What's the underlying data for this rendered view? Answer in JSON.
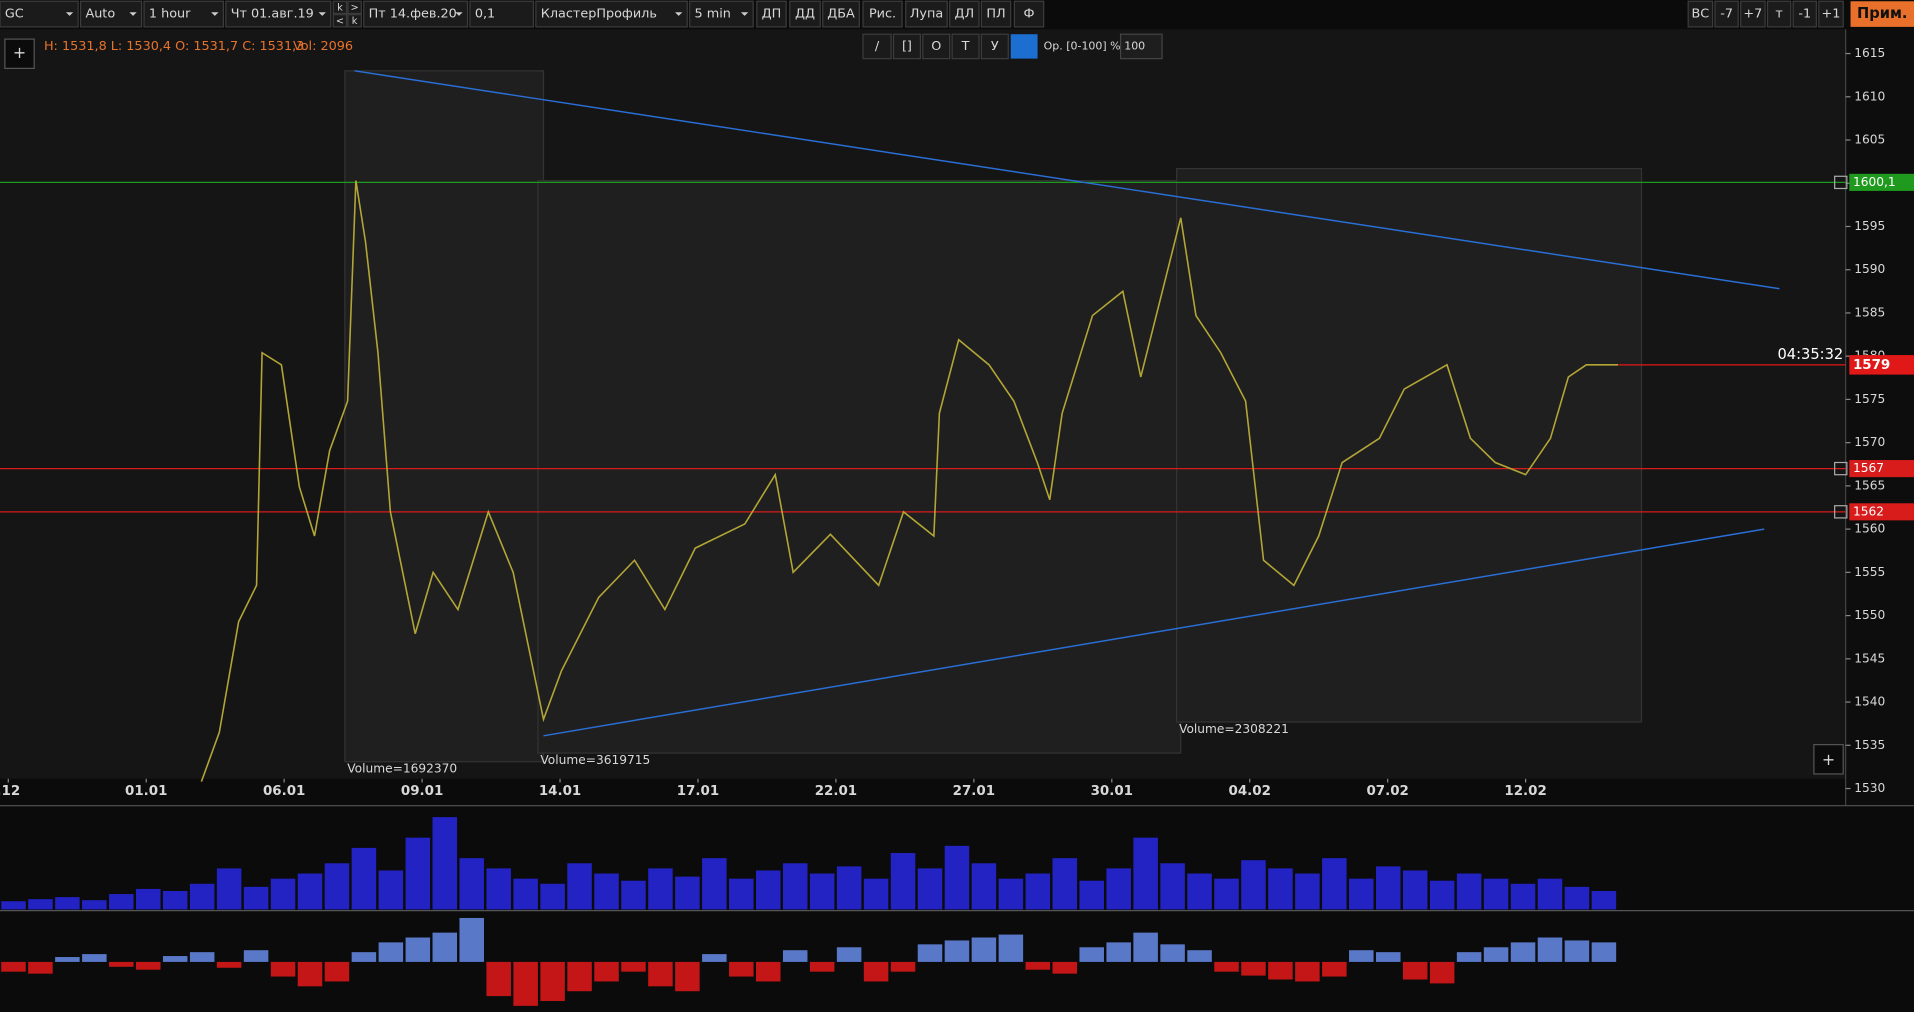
{
  "toolbar": {
    "symbol": "GC",
    "scale": "Auto",
    "timeframe": "1 hour",
    "date_from": "Чт 01.авг.19",
    "nav": [
      "k",
      ">",
      "<",
      "k"
    ],
    "date_to": "Пт 14.фев.20",
    "step": "0,1",
    "chart_type": "КластерПрофиль",
    "profile_period": "5 min",
    "buttons": [
      "ДП",
      "ДД",
      "ДБА",
      "Рис.",
      "Лупа",
      "ДЛ",
      "ПЛ",
      "Ф"
    ],
    "right_buttons": [
      "ВС",
      "-7",
      "+7",
      "т",
      "-1",
      "+1"
    ],
    "apply": "Прим."
  },
  "drawing_tools": {
    "buttons": [
      "/",
      "[]",
      "O",
      "T",
      "У"
    ],
    "opacity_label": "Ор. [0-100] %:",
    "opacity_value": "100"
  },
  "info": {
    "ohlc": "H: 1531,8 L: 1530,4 O: 1531,7 C: 1531,3",
    "volume": "Vol: 2096"
  },
  "chart": {
    "type": "line",
    "color": "#b3a636",
    "xlim": [
      -0.06,
      13.32
    ],
    "ylim": [
      1528.3,
      1617.8
    ],
    "yticks": [
      1530,
      1535,
      1540,
      1545,
      1550,
      1555,
      1560,
      1565,
      1570,
      1575,
      1580,
      1585,
      1590,
      1595,
      1600,
      1605,
      1610,
      1615
    ],
    "xticks": [
      {
        "value": 0,
        "label": ".12"
      },
      {
        "value": 1,
        "label": "01.01"
      },
      {
        "value": 2,
        "label": "06.01"
      },
      {
        "value": 3,
        "label": "09.01"
      },
      {
        "value": 4,
        "label": "14.01"
      },
      {
        "value": 5,
        "label": "17.01"
      },
      {
        "value": 6,
        "label": "22.01"
      },
      {
        "value": 7,
        "label": "27.01"
      },
      {
        "value": 8,
        "label": "30.01"
      },
      {
        "value": 9,
        "label": "04.02"
      },
      {
        "value": 10,
        "label": "07.02"
      },
      {
        "value": 11,
        "label": "12.02"
      }
    ],
    "price": {
      "x": [
        1.4,
        1.53,
        1.67,
        1.8,
        1.84,
        1.98,
        2.11,
        2.22,
        2.33,
        2.46,
        2.52,
        2.59,
        2.68,
        2.77,
        2.95,
        3.08,
        3.26,
        3.48,
        3.66,
        3.88,
        4.01,
        4.28,
        4.54,
        4.76,
        4.98,
        5.34,
        5.56,
        5.69,
        5.96,
        6.31,
        6.49,
        6.71,
        6.75,
        6.89,
        7.11,
        7.29,
        7.46,
        7.55,
        7.64,
        7.86,
        8.08,
        8.21,
        8.39,
        8.5,
        8.61,
        8.79,
        8.97,
        9.1,
        9.32,
        9.5,
        9.67,
        9.94,
        10.12,
        10.43,
        10.6,
        10.78,
        11.0,
        11.18,
        11.31,
        11.44,
        11.67
      ],
      "y": [
        1530.8,
        1536.5,
        1549.3,
        1553.5,
        1580.4,
        1579,
        1564.9,
        1559.2,
        1569.1,
        1574.8,
        1600.3,
        1593.2,
        1580.4,
        1562,
        1547.9,
        1555,
        1550.7,
        1562,
        1555,
        1538,
        1543.6,
        1552.1,
        1556.4,
        1550.7,
        1557.8,
        1560.6,
        1566.3,
        1555,
        1559.4,
        1553.5,
        1562,
        1559.2,
        1573.4,
        1581.9,
        1579,
        1574.8,
        1567.7,
        1563.4,
        1573.4,
        1584.7,
        1587.5,
        1577.6,
        1589,
        1596,
        1584.7,
        1580.4,
        1574.8,
        1556.4,
        1553.5,
        1559.2,
        1567.7,
        1570.5,
        1576.2,
        1579,
        1570.5,
        1567.7,
        1566.3,
        1570.5,
        1577.6,
        1579,
        1579
      ]
    },
    "levels": [
      {
        "value": 1600.1,
        "label": "1600,1",
        "color": "#1f9a1f"
      },
      {
        "value": 1567,
        "color": "#d81c1c"
      },
      {
        "value": 1562,
        "color": "#d81c1c"
      }
    ],
    "current": {
      "value": 1579,
      "time": "04:35:32",
      "color": "#e01818"
    },
    "trendlines": [
      {
        "x": [
          2.51,
          12.84
        ],
        "y": [
          1613,
          1587.8
        ],
        "color": "#2a6fd6"
      },
      {
        "x": [
          3.88,
          12.73
        ],
        "y": [
          1536.1,
          1560
        ],
        "color": "#2a6fd6"
      }
    ],
    "profiles": [
      {
        "label": "Volume=1692370",
        "x": [
          2.44,
          3.88
        ],
        "y": [
          1533.1,
          1613
        ]
      },
      {
        "label": "Volume=3619715",
        "x": [
          3.84,
          8.5
        ],
        "y": [
          1534.1,
          1600.3
        ]
      },
      {
        "label": "Volume=2308221",
        "x": [
          8.47,
          11.84
        ],
        "y": [
          1537.7,
          1601.7
        ]
      }
    ]
  },
  "volume_panel": {
    "color": "#2323c4",
    "ylim": [
      0,
      100
    ],
    "values": [
      8,
      10,
      12,
      9,
      15,
      20,
      18,
      25,
      40,
      22,
      30,
      35,
      45,
      60,
      38,
      70,
      90,
      50,
      40,
      30,
      25,
      45,
      35,
      28,
      40,
      32,
      50,
      30,
      38,
      45,
      35,
      42,
      30,
      55,
      40,
      62,
      45,
      30,
      35,
      50,
      28,
      40,
      70,
      45,
      35,
      30,
      48,
      40,
      35,
      50,
      30,
      42,
      38,
      28,
      35,
      30,
      25,
      30,
      22,
      18
    ]
  },
  "delta_panel": {
    "positive_color": "#5a78c8",
    "negative_color": "#c41616",
    "ylim": [
      -50,
      50
    ],
    "values": [
      -10,
      -12,
      5,
      8,
      -5,
      -8,
      6,
      10,
      -6,
      12,
      -15,
      -25,
      -20,
      10,
      20,
      25,
      30,
      45,
      -35,
      -45,
      -40,
      -30,
      -20,
      -10,
      -25,
      -30,
      8,
      -15,
      -20,
      12,
      -10,
      15,
      -20,
      -10,
      18,
      22,
      25,
      28,
      -8,
      -12,
      15,
      20,
      30,
      18,
      12,
      -10,
      -14,
      -18,
      -20,
      -15,
      12,
      10,
      -18,
      -22,
      10,
      15,
      20,
      25,
      22,
      20
    ]
  }
}
